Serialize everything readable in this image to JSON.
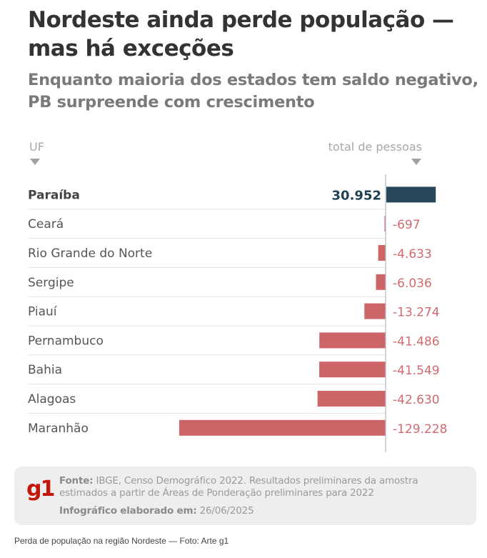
{
  "header": {
    "title": "Nordeste ainda perde população — mas há exceções",
    "subtitle": "Enquanto maioria dos estados tem saldo negativo, PB surpreende com crescimento"
  },
  "columns": {
    "uf": "UF",
    "total": "total de pessoas"
  },
  "colors": {
    "positive": "#26485a",
    "negative": "#cc6468",
    "negative_text": "#d16a6e",
    "positive_text": "#1f4152",
    "brand": "#c4170c"
  },
  "chart_data": {
    "type": "bar",
    "orientation": "horizontal",
    "title": "Nordeste ainda perde população — mas há exceções",
    "subtitle": "Enquanto maioria dos estados tem saldo negativo, PB surpreende com crescimento",
    "xlabel": "total de pessoas",
    "ylabel": "UF",
    "categories": [
      "Paraíba",
      "Ceará",
      "Rio Grande do Norte",
      "Sergipe",
      "Piauí",
      "Pernambuco",
      "Bahia",
      "Alagoas",
      "Maranhão"
    ],
    "values": [
      30952,
      -697,
      -4633,
      -6036,
      -13274,
      -41486,
      -41549,
      -42630,
      -129228
    ],
    "labels": [
      "30.952",
      "-697",
      "-4.633",
      "-6.036",
      "-13.274",
      "-41.486",
      "-41.549",
      "-42.630",
      "-129.228"
    ],
    "highlight": [
      "Paraíba"
    ],
    "xlim": [
      -129228,
      30952
    ],
    "grid": false,
    "legend": "none"
  },
  "footer": {
    "logo": "g1",
    "source_label": "Fonte:",
    "source_text": " IBGE, Censo Demográfico 2022. Resultados preliminares da amostra estimados a partir de Áreas de Ponderação preliminares para 2022",
    "date_label": "Infográfico elaborado em:",
    "date_text": " 26/06/2025"
  },
  "caption": "Perda de população na região Nordeste — Foto: Arte g1"
}
